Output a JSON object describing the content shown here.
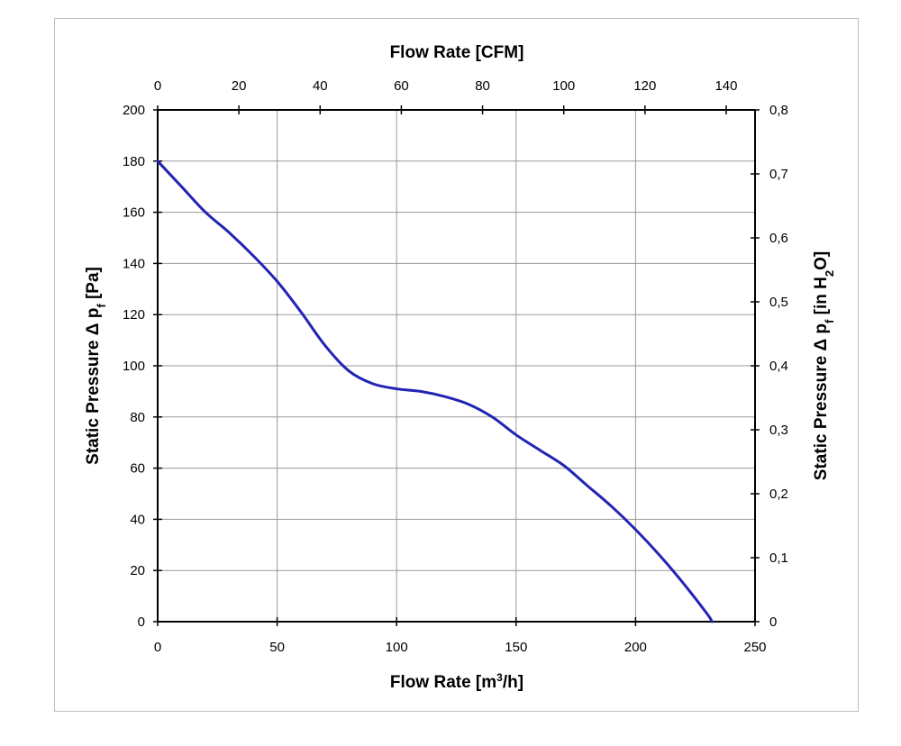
{
  "chart_data": {
    "type": "line",
    "title": "",
    "xlabel": "Flow Rate [m³/h]",
    "x2label": "Flow Rate [CFM]",
    "ylabel": "Static Pressure Δ pf [Pa]",
    "y2label": "Static Pressure Δ pf [in H2O]",
    "xlim": [
      0,
      250
    ],
    "ylim": [
      0,
      200
    ],
    "x2lim": [
      0,
      147.1
    ],
    "y2lim": [
      0,
      0.8
    ],
    "x_ticks": [
      "0",
      "50",
      "100",
      "150",
      "200",
      "250"
    ],
    "y_ticks": [
      "0",
      "20",
      "40",
      "60",
      "80",
      "100",
      "120",
      "140",
      "160",
      "180",
      "200"
    ],
    "x2_ticks": [
      "0",
      "20",
      "40",
      "60",
      "80",
      "100",
      "120",
      "140"
    ],
    "y2_ticks": [
      "0",
      "0,1",
      "0,2",
      "0,3",
      "0,4",
      "0,5",
      "0,6",
      "0,7",
      "0,8"
    ],
    "grid": true,
    "line_color": "#2323b4",
    "series": [
      {
        "x": [
          0,
          10,
          20,
          30,
          40,
          50,
          60,
          70,
          80,
          90,
          100,
          110,
          120,
          130,
          140,
          150,
          160,
          170,
          180,
          190,
          200,
          210,
          220,
          230,
          232
        ],
        "y": [
          180,
          170,
          160,
          152,
          143,
          133,
          121,
          108,
          98,
          93,
          91,
          90,
          88,
          85,
          80,
          73,
          67,
          61,
          53,
          45,
          36,
          26,
          15,
          3,
          0
        ]
      }
    ]
  }
}
